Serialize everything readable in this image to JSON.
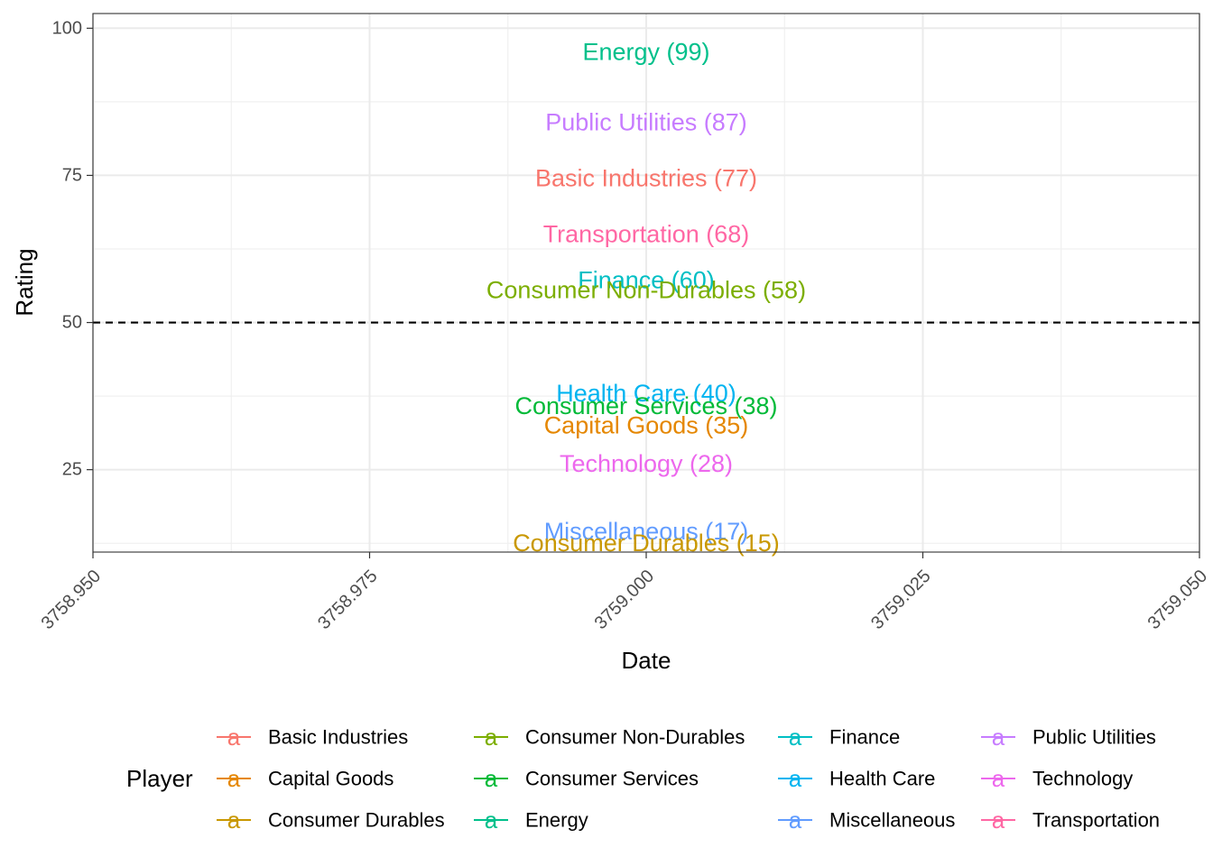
{
  "chart_data": {
    "type": "scatter",
    "title": "",
    "xlabel": "Date",
    "ylabel": "Rating",
    "xlim": [
      3758.95,
      3759.05
    ],
    "ylim": [
      11,
      102.5
    ],
    "x_ticks": [
      "3758.950",
      "3758.975",
      "3759.000",
      "3759.025",
      "3759.050"
    ],
    "y_ticks": [
      "25",
      "50",
      "75",
      "100"
    ],
    "reference_line": {
      "y": 50,
      "style": "dashed"
    },
    "grid": true,
    "legend_title": "Player",
    "legend_position": "bottom",
    "points": [
      {
        "label": "Energy (99)",
        "series": "Energy",
        "x": 3759.0,
        "y": 96,
        "color": "#00C08B"
      },
      {
        "label": "Public Utilities (87)",
        "series": "Public Utilities",
        "x": 3759.0,
        "y": 84,
        "color": "#C77CFF"
      },
      {
        "label": "Basic Industries (77)",
        "series": "Basic Industries",
        "x": 3759.0,
        "y": 74.5,
        "color": "#F8766D"
      },
      {
        "label": "Transportation (68)",
        "series": "Transportation",
        "x": 3759.0,
        "y": 65,
        "color": "#FF67A4"
      },
      {
        "label": "Finance (60)",
        "series": "Finance",
        "x": 3759.0,
        "y": 57.2,
        "color": "#00BFC4"
      },
      {
        "label": "Consumer Non-Durables (58)",
        "series": "Consumer Non-Durables",
        "x": 3759.0,
        "y": 55.5,
        "color": "#7CAE00"
      },
      {
        "label": "Health Care (40)",
        "series": "Health Care",
        "x": 3759.0,
        "y": 38,
        "color": "#00B4F0"
      },
      {
        "label": "Consumer Services (38)",
        "series": "Consumer Services",
        "x": 3759.0,
        "y": 35.8,
        "color": "#00BA38"
      },
      {
        "label": "Capital Goods (35)",
        "series": "Capital Goods",
        "x": 3759.0,
        "y": 32.5,
        "color": "#E58700"
      },
      {
        "label": "Technology (28)",
        "series": "Technology",
        "x": 3759.0,
        "y": 26,
        "color": "#ED68ED"
      },
      {
        "label": "Miscellaneous (17)",
        "series": "Miscellaneous",
        "x": 3759.0,
        "y": 14.5,
        "color": "#619CFF"
      },
      {
        "label": "Consumer Durables (15)",
        "series": "Consumer Durables",
        "x": 3759.0,
        "y": 12.5,
        "color": "#C99800"
      }
    ],
    "legend": [
      {
        "name": "Basic Industries",
        "color": "#F8766D"
      },
      {
        "name": "Capital Goods",
        "color": "#E58700"
      },
      {
        "name": "Consumer Durables",
        "color": "#C99800"
      },
      {
        "name": "Consumer Non-Durables",
        "color": "#7CAE00"
      },
      {
        "name": "Consumer Services",
        "color": "#00BA38"
      },
      {
        "name": "Energy",
        "color": "#00C08B"
      },
      {
        "name": "Finance",
        "color": "#00BFC4"
      },
      {
        "name": "Health Care",
        "color": "#00B4F0"
      },
      {
        "name": "Miscellaneous",
        "color": "#619CFF"
      },
      {
        "name": "Public Utilities",
        "color": "#C77CFF"
      },
      {
        "name": "Technology",
        "color": "#ED68ED"
      },
      {
        "name": "Transportation",
        "color": "#FF67A4"
      }
    ],
    "legend_key_glyph": "a"
  }
}
